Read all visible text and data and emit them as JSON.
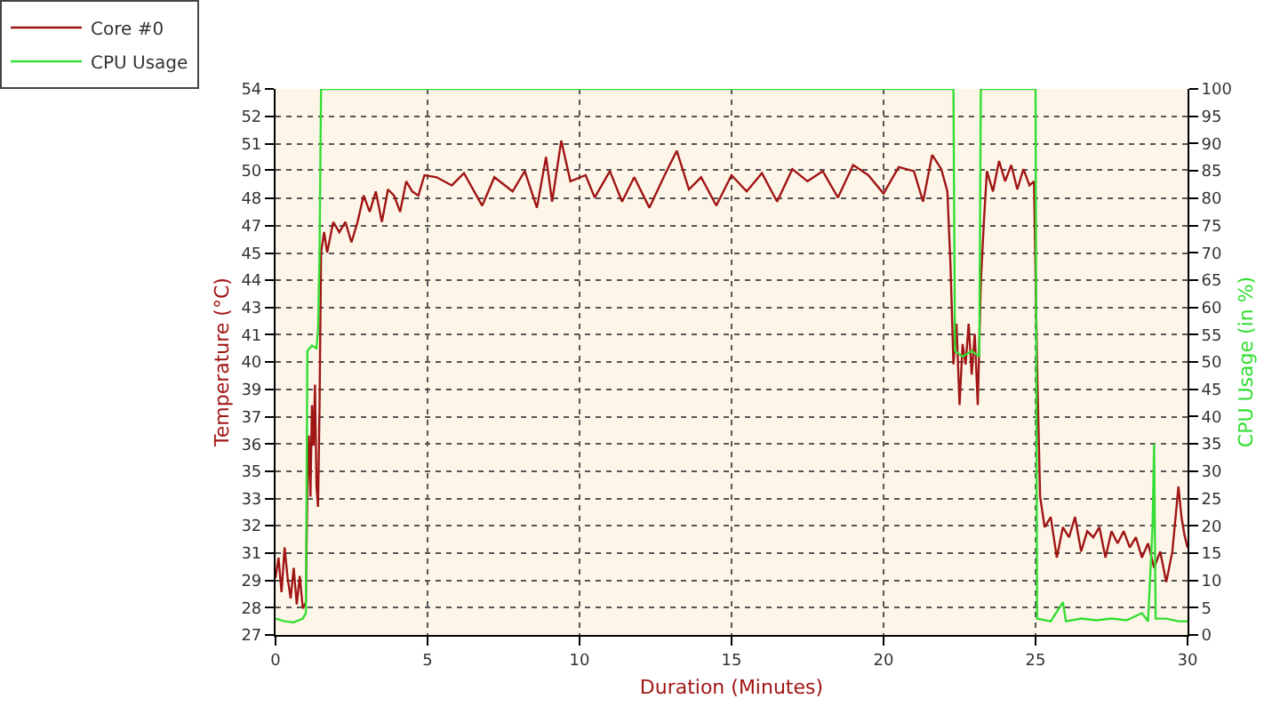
{
  "chart_data": {
    "type": "line",
    "xlabel": "Duration (Minutes)",
    "ylabel": "Temperature (°C)",
    "y2label": "CPU Usage (in %)",
    "xlim": [
      0,
      30
    ],
    "xticks": [
      0,
      5,
      10,
      15,
      20,
      25,
      30
    ],
    "ylim": [
      26.7,
      53.54
    ],
    "yticks": [
      {
        "value": 26.7,
        "label": "27"
      },
      {
        "value": 28.04,
        "label": "28"
      },
      {
        "value": 29.38,
        "label": "29"
      },
      {
        "value": 30.73,
        "label": "31"
      },
      {
        "value": 32.07,
        "label": "32"
      },
      {
        "value": 33.41,
        "label": "33"
      },
      {
        "value": 34.75,
        "label": "35"
      },
      {
        "value": 36.09,
        "label": "36"
      },
      {
        "value": 37.43,
        "label": "37"
      },
      {
        "value": 38.78,
        "label": "39"
      },
      {
        "value": 40.12,
        "label": "40"
      },
      {
        "value": 41.46,
        "label": "41"
      },
      {
        "value": 42.8,
        "label": "43"
      },
      {
        "value": 44.14,
        "label": "44"
      },
      {
        "value": 45.45,
        "label": "45"
      },
      {
        "value": 46.83,
        "label": "47"
      },
      {
        "value": 48.17,
        "label": "48"
      },
      {
        "value": 49.55,
        "label": "50"
      },
      {
        "value": 50.85,
        "label": "51"
      },
      {
        "value": 52.19,
        "label": "52"
      },
      {
        "value": 53.54,
        "label": "54"
      }
    ],
    "y2lim": [
      0,
      100
    ],
    "y2ticks": [
      0,
      5,
      10,
      15,
      20,
      25,
      30,
      35,
      40,
      45,
      50,
      55,
      60,
      65,
      70,
      75,
      80,
      85,
      90,
      95,
      100
    ],
    "grid": true,
    "legend": "top left",
    "marker": "none",
    "line_style": "solid",
    "series": [
      {
        "name": "Core #0",
        "color": "#a01515",
        "x": [
          0,
          0.1,
          0.2,
          0.3,
          0.4,
          0.5,
          0.6,
          0.7,
          0.8,
          0.9,
          1.0,
          1.05,
          1.1,
          1.15,
          1.2,
          1.25,
          1.3,
          1.35,
          1.4,
          1.45,
          1.5,
          1.6,
          1.7,
          1.9,
          2.1,
          2.3,
          2.5,
          2.7,
          2.9,
          3.1,
          3.3,
          3.5,
          3.7,
          3.9,
          4.1,
          4.3,
          4.5,
          4.7,
          4.9,
          5.3,
          5.8,
          6.2,
          6.8,
          7.2,
          7.8,
          8.2,
          8.6,
          8.9,
          9.1,
          9.4,
          9.7,
          10.2,
          10.5,
          11,
          11.4,
          11.8,
          12.3,
          12.8,
          13.2,
          13.6,
          14,
          14.5,
          15,
          15.5,
          16,
          16.5,
          17,
          17.5,
          18,
          18.5,
          19,
          19.5,
          20,
          20.5,
          21,
          21.3,
          21.6,
          21.9,
          22.1,
          22.2,
          22.3,
          22.4,
          22.5,
          22.6,
          22.7,
          22.8,
          22.9,
          23.0,
          23.1,
          23.2,
          23.3,
          23.4,
          23.6,
          23.8,
          24,
          24.2,
          24.4,
          24.6,
          24.8,
          24.95,
          25.05,
          25.15,
          25.3,
          25.5,
          25.7,
          25.9,
          26.1,
          26.3,
          26.5,
          26.7,
          26.9,
          27.1,
          27.3,
          27.5,
          27.7,
          27.9,
          28.1,
          28.3,
          28.5,
          28.7,
          28.9,
          29.1,
          29.3,
          29.5,
          29.7,
          29.8,
          29.9,
          30
        ],
        "values": [
          29.5,
          30.5,
          28.8,
          31,
          29.5,
          28.5,
          30,
          28.2,
          29.6,
          28,
          28.3,
          34,
          36.5,
          33.5,
          38,
          36,
          39,
          34,
          33,
          38,
          45.5,
          46.5,
          45.5,
          47,
          46.5,
          47,
          46,
          47,
          48.3,
          47.5,
          48.5,
          47,
          48.6,
          48.3,
          47.5,
          49,
          48.5,
          48.3,
          49.3,
          49.2,
          48.8,
          49.4,
          47.8,
          49.2,
          48.5,
          49.5,
          47.7,
          50.2,
          48,
          51,
          49,
          49.3,
          48.2,
          49.5,
          48,
          49.2,
          47.7,
          49.3,
          50.5,
          48.6,
          49.2,
          47.8,
          49.3,
          48.5,
          49.4,
          48,
          49.6,
          49,
          49.5,
          48.2,
          49.8,
          49.3,
          48.4,
          49.7,
          49.5,
          48,
          50.3,
          49.6,
          48.5,
          45,
          40,
          42,
          38,
          41,
          40,
          42,
          39.5,
          41.5,
          38,
          44,
          47,
          49.5,
          48.5,
          50,
          49,
          49.8,
          48.6,
          49.6,
          48.8,
          49,
          40,
          33.5,
          32,
          32.5,
          30.5,
          32,
          31.5,
          32.5,
          30.8,
          31.8,
          31.5,
          32,
          30.5,
          31.8,
          31.2,
          31.8,
          31,
          31.5,
          30.5,
          31.2,
          30,
          30.8,
          29.3,
          30.8,
          34,
          32.5,
          31.6,
          31
        ]
      },
      {
        "name": "CPU Usage",
        "color": "#33dd33",
        "axis": "y2",
        "x": [
          0,
          0.3,
          0.6,
          0.9,
          1.0,
          1.05,
          1.2,
          1.35,
          1.4,
          1.45,
          1.5,
          22.3,
          22.35,
          22.6,
          22.9,
          23.15,
          23.2,
          25.0,
          25.05,
          25.5,
          25.9,
          26.0,
          26.5,
          27,
          27.5,
          28,
          28.5,
          28.7,
          28.85,
          28.9,
          28.95,
          29.3,
          29.7,
          30
        ],
        "values": [
          3,
          2.5,
          2.3,
          3,
          4,
          52,
          53,
          52.5,
          56,
          70,
          100,
          100,
          52,
          51,
          52,
          51,
          100,
          100,
          3,
          2.5,
          6,
          2.5,
          3,
          2.7,
          3,
          2.7,
          4,
          2.5,
          20,
          35,
          3,
          3,
          2.5,
          2.5
        ]
      }
    ]
  }
}
